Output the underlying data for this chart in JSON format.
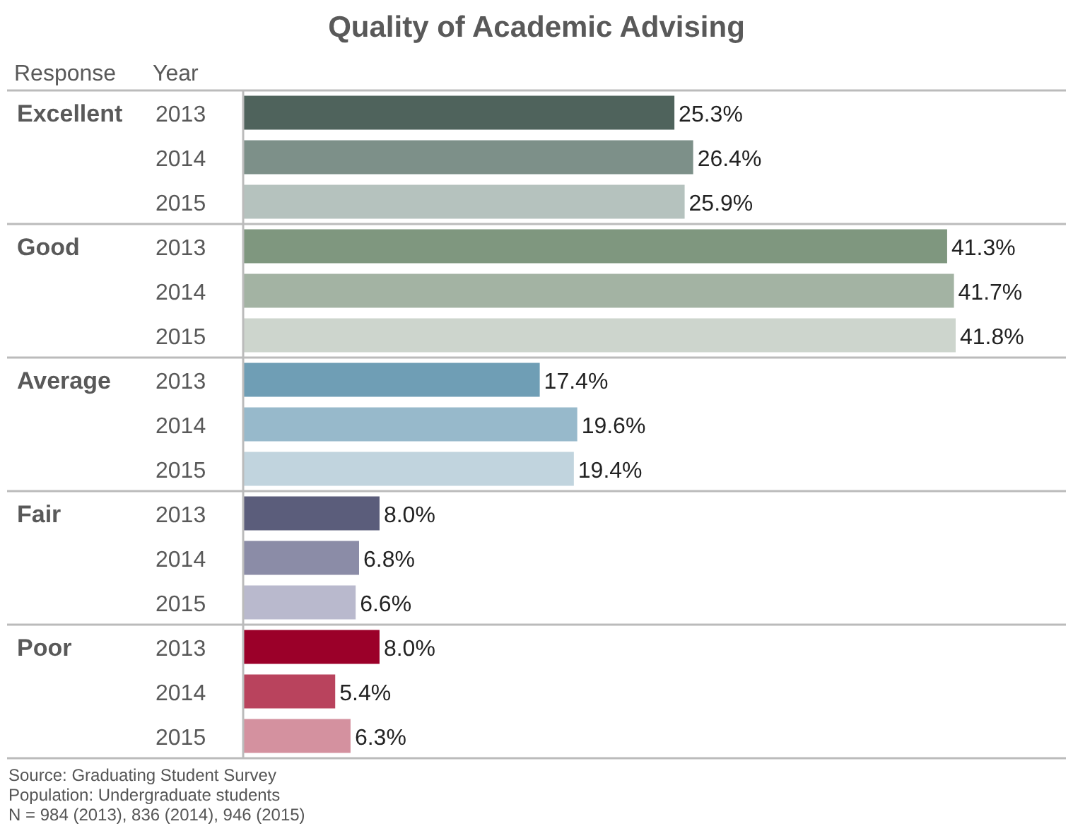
{
  "chart_data": {
    "type": "bar",
    "orientation": "horizontal",
    "title": "Quality of Academic Advising",
    "ylabel": "Response",
    "legend_title": "Year",
    "categories": [
      "Excellent",
      "Good",
      "Average",
      "Fair",
      "Poor"
    ],
    "series": [
      {
        "name": "2013",
        "colors": [
          "#4f635c",
          "#7f977f",
          "#6f9eb5",
          "#5b5d7b",
          "#9b0029"
        ],
        "values": [
          25.3,
          41.3,
          17.4,
          8.0,
          8.0
        ],
        "value_labels": [
          "25.3%",
          "41.3%",
          "17.4%",
          "8.0%",
          "8.0%"
        ]
      },
      {
        "name": "2014",
        "colors": [
          "#7d9089",
          "#a3b3a3",
          "#97b9cb",
          "#8b8ca7",
          "#b9435d"
        ],
        "values": [
          26.4,
          41.7,
          19.6,
          6.8,
          5.4
        ],
        "value_labels": [
          "26.4%",
          "41.7%",
          "19.6%",
          "6.8%",
          "5.4%"
        ]
      },
      {
        "name": "2015",
        "colors": [
          "#b5c2be",
          "#cdd5cd",
          "#c1d4de",
          "#b9b9cd",
          "#d4919f"
        ],
        "values": [
          25.9,
          41.8,
          19.4,
          6.6,
          6.3
        ],
        "value_labels": [
          "25.9%",
          "41.8%",
          "19.4%",
          "6.6%",
          "6.3%"
        ]
      }
    ],
    "annotations": [
      "Source: Graduating Student Survey",
      "Population: Undergraduate students",
      "N = 984 (2013), 836 (2014), 946 (2015)"
    ]
  }
}
